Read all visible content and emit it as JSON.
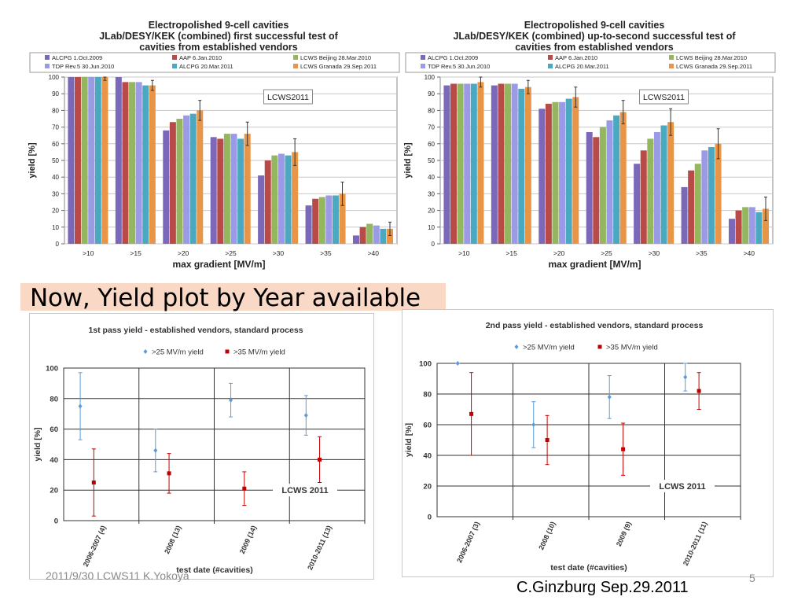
{
  "slide": {
    "banner": "Now, Yield plot by Year available",
    "footer_left": "2011/9/30 LCWS11 K.Yokoya",
    "footer_right": "C.Ginzburg  Sep.29.2011",
    "page_number": "5"
  },
  "chart_data": [
    {
      "type": "bar",
      "title": [
        "Electropolished 9-cell cavities",
        "JLab/DESY/KEK (combined) first successful test of",
        "cavities from established vendors"
      ],
      "xlabel": "max gradient [MV/m]",
      "ylabel": "yield [%]",
      "ylim": [
        0,
        100
      ],
      "yticks": [
        0,
        10,
        20,
        30,
        40,
        50,
        60,
        70,
        80,
        90,
        100
      ],
      "annotation": "LCWS2011",
      "categories": [
        ">10",
        ">15",
        ">20",
        ">25",
        ">30",
        ">35",
        ">40"
      ],
      "series": [
        {
          "name": "ALCPG 1.Oct.2009",
          "color": "#7b68b8",
          "values": [
            100,
            100,
            68,
            64,
            41,
            23,
            5
          ]
        },
        {
          "name": "AAP 6.Jan.2010",
          "color": "#b84a48",
          "values": [
            100,
            97,
            73,
            63,
            50,
            27,
            10
          ]
        },
        {
          "name": "LCWS Beijing 28.Mar.2010",
          "color": "#93b65e",
          "values": [
            100,
            97,
            75,
            66,
            53,
            28,
            12
          ]
        },
        {
          "name": "TDP Rev.5 30.Jun.2010",
          "color": "#9a9ae6",
          "values": [
            100,
            97,
            77,
            66,
            54,
            29,
            11
          ]
        },
        {
          "name": "ALCPG 20.Mar.2011",
          "color": "#4aa8c0",
          "values": [
            100,
            95,
            78,
            63,
            53,
            29,
            9
          ]
        },
        {
          "name": "LCWS Granada 29.Sep.2011",
          "color": "#e89548",
          "values": [
            100,
            95,
            80,
            66,
            55,
            30,
            9
          ],
          "errors": [
            2,
            3,
            6,
            7,
            8,
            7,
            4
          ]
        }
      ]
    },
    {
      "type": "bar",
      "title": [
        "Electropolished 9-cell cavities",
        "JLab/DESY/KEK (combined) up-to-second successful test of",
        "cavities from established vendors"
      ],
      "xlabel": "max gradient [MV/m]",
      "ylabel": "yield [%]",
      "ylim": [
        0,
        100
      ],
      "yticks": [
        0,
        10,
        20,
        30,
        40,
        50,
        60,
        70,
        80,
        90,
        100
      ],
      "annotation": "LCWS2011",
      "categories": [
        ">10",
        ">15",
        ">20",
        ">25",
        ">30",
        ">35",
        ">40"
      ],
      "series": [
        {
          "name": "ALCPG 1.Oct.2009",
          "color": "#7b68b8",
          "values": [
            95,
            95,
            81,
            67,
            48,
            34,
            15
          ]
        },
        {
          "name": "AAP 6.Jan.2010",
          "color": "#b84a48",
          "values": [
            96,
            96,
            84,
            64,
            56,
            44,
            20
          ]
        },
        {
          "name": "LCWS Beijing 28.Mar.2010",
          "color": "#93b65e",
          "values": [
            96,
            96,
            85,
            70,
            63,
            48,
            22
          ]
        },
        {
          "name": "TDP Rev.5 30.Jun.2010",
          "color": "#9a9ae6",
          "values": [
            96,
            96,
            85,
            74,
            67,
            56,
            22
          ]
        },
        {
          "name": "ALCPG 20.Mar.2011",
          "color": "#4aa8c0",
          "values": [
            96,
            93,
            87,
            77,
            71,
            58,
            19
          ]
        },
        {
          "name": "LCWS Granada 29.Sep.2011",
          "color": "#e89548",
          "values": [
            97,
            94,
            88,
            79,
            73,
            60,
            21
          ],
          "errors": [
            3,
            4,
            6,
            7,
            8,
            9,
            7
          ]
        }
      ]
    },
    {
      "type": "scatter",
      "title": "1st pass yield - established vendors, standard process",
      "xlabel": "test date (#cavities)",
      "ylabel": "yield [%]",
      "ylim": [
        0,
        100
      ],
      "yticks": [
        0,
        20,
        40,
        60,
        80,
        100
      ],
      "annotation": "LCWS 2011",
      "categories": [
        "2006-2007 (4)",
        "2008 (13)",
        "2009 (14)",
        "2010-2011 (13)"
      ],
      "series": [
        {
          "name": ">25 MV/m yield",
          "color": "#5b9bd5",
          "marker": "diamond",
          "values": [
            75,
            46,
            79,
            69
          ],
          "lower": [
            53,
            32,
            68,
            56
          ],
          "upper": [
            97,
            60,
            90,
            82
          ]
        },
        {
          "name": ">35 MV/m yield",
          "color": "#c00000",
          "marker": "square",
          "values": [
            25,
            31,
            21,
            40
          ],
          "lower": [
            3,
            18,
            10,
            25
          ],
          "upper": [
            47,
            44,
            32,
            55
          ]
        }
      ]
    },
    {
      "type": "scatter",
      "title": "2nd pass yield - established vendors, standard process",
      "xlabel": "test date (#cavities)",
      "ylabel": "yield [%]",
      "ylim": [
        0,
        100
      ],
      "yticks": [
        0,
        20,
        40,
        60,
        80,
        100
      ],
      "annotation": "LCWS 2011",
      "categories": [
        "2006-2007 (3)",
        "2008 (10)",
        "2009 (9)",
        "2010-2011 (11)"
      ],
      "series": [
        {
          "name": ">25 MV/m yield",
          "color": "#5b9bd5",
          "marker": "diamond",
          "values": [
            100,
            60,
            78,
            91
          ],
          "lower": [
            100,
            45,
            64,
            82
          ],
          "upper": [
            100,
            75,
            92,
            100
          ]
        },
        {
          "name": ">35 MV/m yield",
          "color": "#c00000",
          "marker": "square",
          "values": [
            67,
            50,
            44,
            82
          ],
          "lower": [
            40,
            34,
            27,
            70
          ],
          "upper": [
            94,
            66,
            61,
            94
          ]
        }
      ]
    }
  ]
}
